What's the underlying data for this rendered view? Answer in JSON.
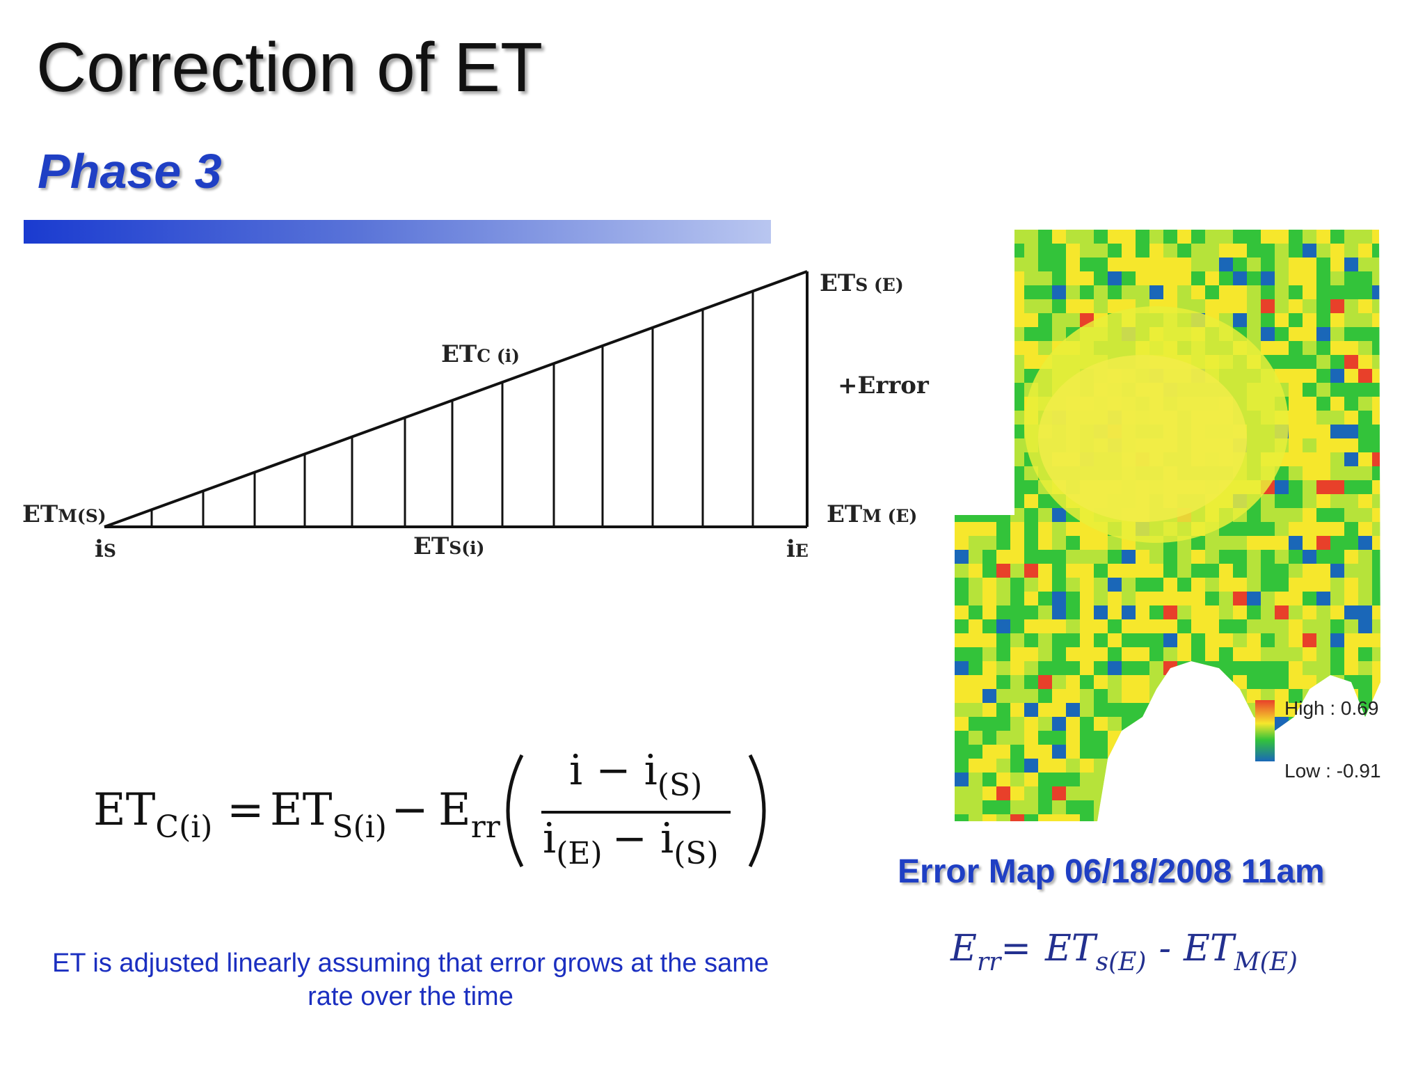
{
  "slide": {
    "title": "Correction of ET",
    "subtitle": "Phase 3"
  },
  "diagram": {
    "top_right_label": {
      "main": "ET",
      "sub": "S (E)"
    },
    "middle_label": {
      "main": "ET",
      "sub": "C (i)"
    },
    "error_label": "+Error",
    "left_label": {
      "main": "ET",
      "sub": "M(S)"
    },
    "right_label": {
      "main": "ET",
      "sub": "M (E)"
    },
    "start_label": {
      "main": "i",
      "sub": "S"
    },
    "baseline_label": {
      "main": "ET",
      "sub": "S(i)"
    },
    "end_label": {
      "main": "i",
      "sub": "E"
    }
  },
  "formula": {
    "lhs": "ET",
    "lhs_sub": "C(i)",
    "equals": "=",
    "term1": "ET",
    "term1_sub": "S(i)",
    "minus": "−",
    "term2": "E",
    "term2_sub": "rr",
    "numerator": "i − i",
    "numerator_sub": "(S)",
    "denominator_a": "i",
    "denominator_a_sub": "(E)",
    "denominator_minus": "− i",
    "denominator_b_sub": "(S)"
  },
  "caption": "ET is adjusted linearly assuming that error grows at the same rate over the time",
  "map": {
    "legend_high": "High : 0.69",
    "legend_low": "Low : -0.91",
    "caption": "Error Map 06/18/2008 11am",
    "colors": [
      "#e8402a",
      "#f6e72c",
      "#b6e33a",
      "#33c33a",
      "#1a67b8"
    ]
  },
  "err_formula": {
    "lhs": "E",
    "lhs_sub": "rr",
    "equals": "=",
    "a": "ET",
    "a_sub": "s(E)",
    "minus": "-",
    "b": "ET",
    "b_sub": "M(E)"
  }
}
